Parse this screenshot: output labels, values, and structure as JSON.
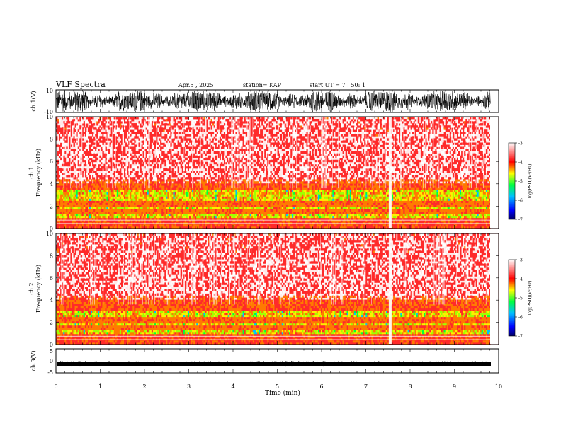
{
  "header": {
    "title": "VLF Spectra",
    "date": "Apr.5 , 2025",
    "station": "station= KAP",
    "start": "start UT = 7 : 50: 1"
  },
  "chart_data": [
    {
      "type": "line",
      "panel": "ch1-waveform",
      "ylabel": "ch.1(V)",
      "yticks": [
        "10",
        "-10"
      ],
      "ylim": [
        -10,
        10
      ],
      "xlim": [
        0,
        10
      ]
    },
    {
      "type": "heatmap",
      "panel": "ch1-spectrogram",
      "ylabel_line1": "ch.1",
      "ylabel_line2": "Frequency (kHz)",
      "yticks": [
        "0",
        "2",
        "4",
        "6",
        "8",
        "10"
      ],
      "ylim": [
        0,
        10
      ],
      "xlim": [
        0,
        10
      ],
      "colorbar": {
        "label": "log(PSD)(V²/Hz)",
        "ticks": [
          "-3",
          "-4",
          "-5",
          "-6",
          "-7"
        ],
        "range": [
          -7,
          -3
        ]
      }
    },
    {
      "type": "heatmap",
      "panel": "ch2-spectrogram",
      "ylabel_line1": "ch.2",
      "ylabel_line2": "Frequency (kHz)",
      "yticks": [
        "0",
        "2",
        "4",
        "6",
        "8",
        "10"
      ],
      "ylim": [
        0,
        10
      ],
      "xlim": [
        0,
        10
      ],
      "colorbar": {
        "label": "log(PSD)(V²/Hz)",
        "ticks": [
          "-3",
          "-4",
          "-5",
          "-6",
          "-7"
        ],
        "range": [
          -7,
          -3
        ]
      }
    },
    {
      "type": "line",
      "panel": "ch3-waveform",
      "ylabel": "ch.3(V)",
      "yticks": [
        "5",
        "0",
        "-5"
      ],
      "ylim": [
        -5,
        5
      ],
      "xlim": [
        0,
        10
      ],
      "xlabel": "Time (min)",
      "xticks": [
        "0",
        "1",
        "2",
        "3",
        "4",
        "5",
        "6",
        "7",
        "8",
        "9",
        "10"
      ]
    }
  ],
  "colors": {
    "low": "#000080",
    "mid_low": "#00a0ff",
    "mid": "#00ff00",
    "mid_high": "#ffff00",
    "high": "#ff0000",
    "top": "#ffffff"
  }
}
